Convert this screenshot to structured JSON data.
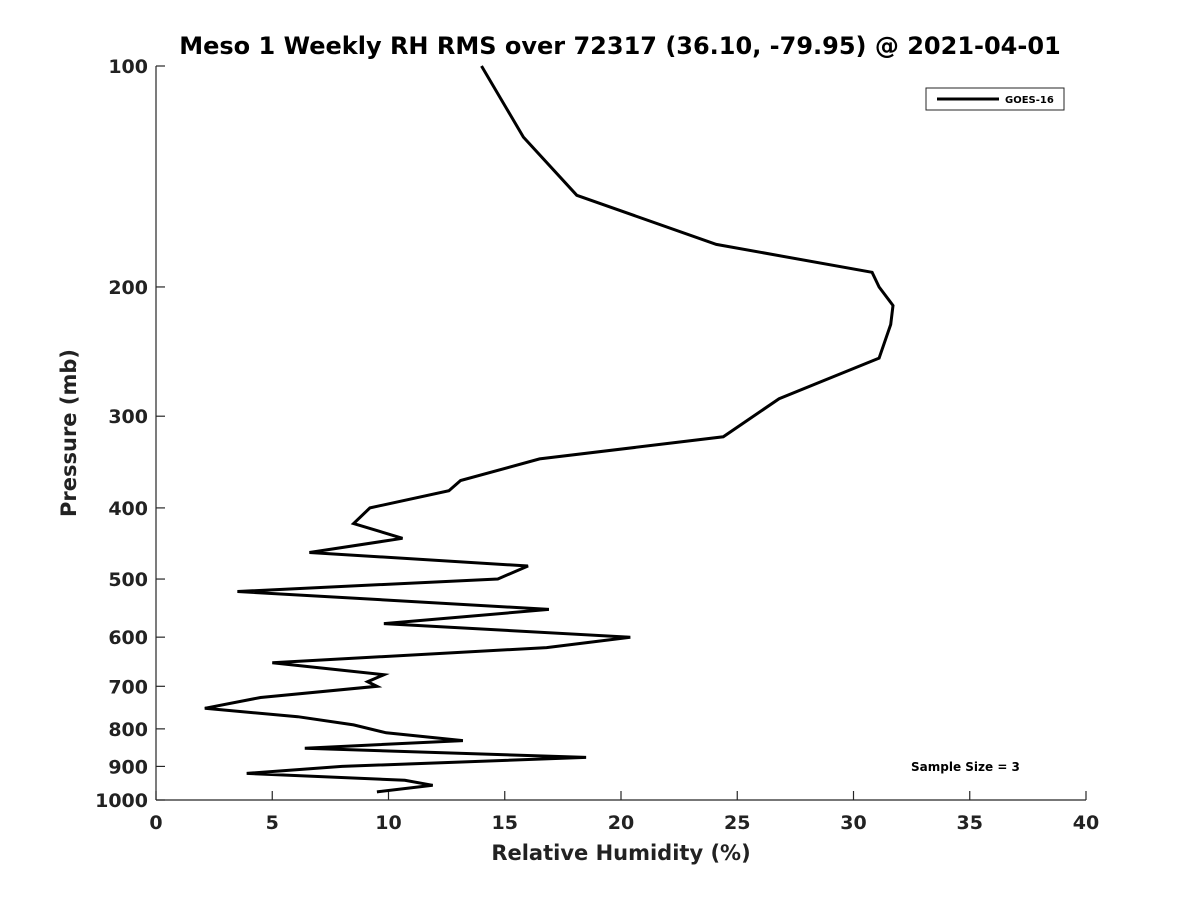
{
  "chart_data": {
    "type": "line",
    "title": "Meso 1 Weekly RH RMS over 72317 (36.10, -79.95) @ 2021-04-01",
    "xlabel": "Relative Humidity (%)",
    "ylabel": "Pressure (mb)",
    "xlim": [
      0,
      40
    ],
    "ylim": [
      100,
      1000
    ],
    "y_scale": "log",
    "y_reversed": true,
    "x_ticks": [
      "0",
      "5",
      "10",
      "15",
      "20",
      "25",
      "30",
      "35",
      "40"
    ],
    "y_ticks": [
      "100",
      "200",
      "300",
      "400",
      "500",
      "600",
      "700",
      "800",
      "900",
      "1000"
    ],
    "grid": false,
    "legend": {
      "position": "top-right"
    },
    "annotation": "Sample Size = 3",
    "series": [
      {
        "name": "GOES-16",
        "color": "#000000",
        "points": [
          [
            14.0,
            100
          ],
          [
            15.8,
            125
          ],
          [
            18.1,
            150
          ],
          [
            24.1,
            175
          ],
          [
            30.8,
            191
          ],
          [
            31.1,
            200
          ],
          [
            31.7,
            212
          ],
          [
            31.6,
            225
          ],
          [
            31.1,
            250
          ],
          [
            26.8,
            284
          ],
          [
            24.4,
            320
          ],
          [
            16.5,
            343
          ],
          [
            13.1,
            367
          ],
          [
            12.6,
            379
          ],
          [
            9.2,
            400
          ],
          [
            8.5,
            420
          ],
          [
            10.6,
            440
          ],
          [
            6.6,
            460
          ],
          [
            16.0,
            480
          ],
          [
            14.7,
            500
          ],
          [
            3.5,
            520
          ],
          [
            16.9,
            550
          ],
          [
            9.8,
            575
          ],
          [
            20.4,
            600
          ],
          [
            16.8,
            620
          ],
          [
            5.0,
            650
          ],
          [
            9.8,
            675
          ],
          [
            9.1,
            690
          ],
          [
            9.5,
            700
          ],
          [
            4.5,
            725
          ],
          [
            2.1,
            750
          ],
          [
            6.1,
            770
          ],
          [
            8.5,
            790
          ],
          [
            9.9,
            810
          ],
          [
            13.2,
            830
          ],
          [
            6.4,
            850
          ],
          [
            18.5,
            875
          ],
          [
            8.0,
            900
          ],
          [
            3.9,
            920
          ],
          [
            10.7,
            940
          ],
          [
            11.9,
            955
          ],
          [
            9.5,
            975
          ]
        ]
      }
    ]
  }
}
